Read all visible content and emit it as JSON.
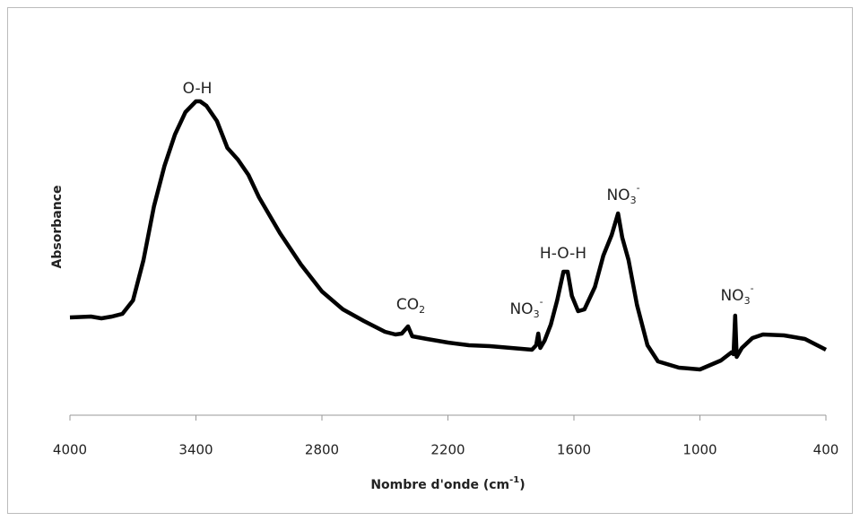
{
  "chart_data": {
    "type": "line",
    "x_label": [
      {
        "text": "Nombre d'onde (cm"
      },
      {
        "text": "-1",
        "sup": true
      },
      {
        "text": ")"
      }
    ],
    "y_label": "Absorbance",
    "xlim": [
      4000,
      400
    ],
    "xticks": [
      4000,
      3400,
      2800,
      2200,
      1600,
      1000,
      400
    ],
    "ylim": [
      0,
      400
    ],
    "series": [
      {
        "color": "#000000",
        "x": [
          4000,
          3900,
          3850,
          3800,
          3750,
          3700,
          3650,
          3600,
          3550,
          3500,
          3450,
          3400,
          3380,
          3350,
          3300,
          3250,
          3200,
          3150,
          3100,
          3000,
          2900,
          2800,
          2700,
          2600,
          2500,
          2450,
          2420,
          2390,
          2370,
          2300,
          2200,
          2100,
          2000,
          1900,
          1800,
          1780,
          1770,
          1760,
          1740,
          1710,
          1680,
          1650,
          1630,
          1610,
          1580,
          1550,
          1500,
          1460,
          1420,
          1390,
          1370,
          1340,
          1300,
          1250,
          1200,
          1100,
          1000,
          900,
          850,
          840,
          832,
          825,
          800,
          750,
          700,
          600,
          500,
          400
        ],
        "values": [
          109,
          110,
          108,
          110,
          113,
          128,
          173,
          233,
          278,
          313,
          338,
          350,
          350,
          345,
          328,
          298,
          285,
          268,
          243,
          203,
          168,
          138,
          118,
          105,
          93,
          90,
          91,
          99,
          88,
          85,
          81,
          78,
          77,
          75,
          73,
          78,
          91,
          75,
          83,
          101,
          128,
          160,
          160,
          133,
          116,
          118,
          143,
          178,
          201,
          225,
          198,
          173,
          123,
          78,
          60,
          53,
          51,
          61,
          70,
          68,
          111,
          65,
          75,
          86,
          90,
          89,
          85,
          73
        ]
      }
    ],
    "annotations": [
      {
        "text": "O-H"
      },
      {
        "text": "CO",
        "sub": "2"
      },
      {
        "text": "NO",
        "sub": "3",
        "sup": "-"
      },
      {
        "text": "H-O-H"
      },
      {
        "text": "NO",
        "sub": "3",
        "sup": "-"
      },
      {
        "text": "NO",
        "sub": "3",
        "sup": "-"
      }
    ]
  }
}
